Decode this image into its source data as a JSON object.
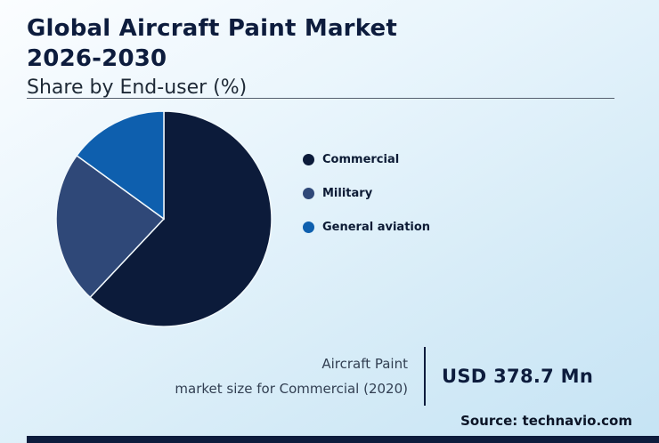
{
  "header": {
    "title_line1": "Global Aircraft Paint Market",
    "title_line2": "2026-2030",
    "subtitle": "Share by End-user (%)"
  },
  "chart_data": {
    "type": "pie",
    "title": "Global Aircraft Paint Market 2026-2030, Share by End-user (%)",
    "legend_position": "right",
    "start_angle_deg": 0,
    "direction": "clockwise",
    "segments": [
      {
        "label": "Commercial",
        "value": 62,
        "color": "#0c1b3a"
      },
      {
        "label": "Military",
        "value": 23,
        "color": "#2f4878"
      },
      {
        "label": "General aviation",
        "value": 15,
        "color": "#0e5fae"
      }
    ]
  },
  "footnote": {
    "label_line1": "Aircraft Paint",
    "label_line2": "market size for Commercial (2020)",
    "value": "USD 378.7 Mn"
  },
  "source": "Source: technavio.com"
}
